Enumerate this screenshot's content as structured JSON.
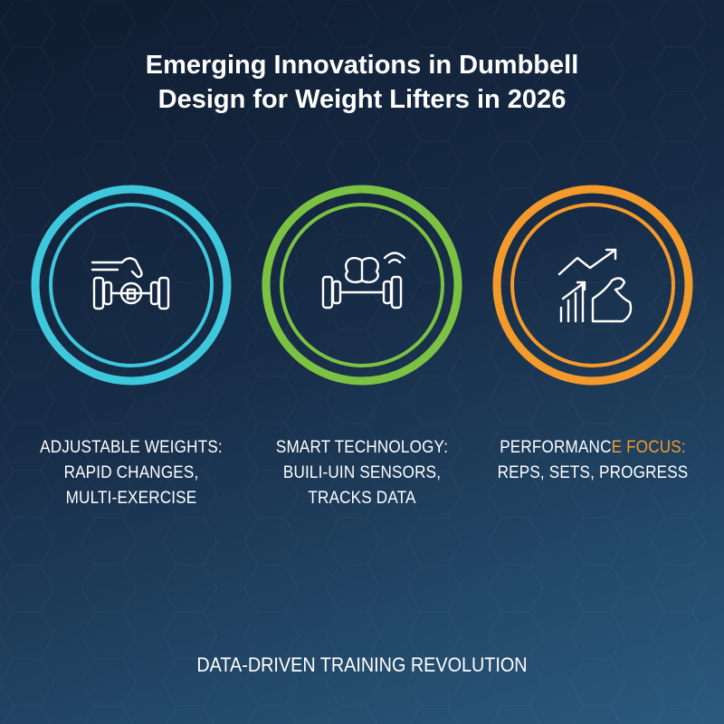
{
  "header": {
    "title_lines": [
      "Emerging Innovations in Dumbbell",
      "Design for Weight Lifters in 2026"
    ]
  },
  "features": [
    {
      "ring_color": "#3ec8de",
      "heading_parts": [
        "ADJUSTABLE WEIGHTS:"
      ],
      "lines": [
        "RAPID CHANGES,",
        "MULTI-EXERCISE"
      ]
    },
    {
      "ring_color": "#7cc242",
      "heading_parts": [
        "SMART TECHNOLOGY:"
      ],
      "lines": [
        "BUILI-UIN SENSORS,",
        "TRACKS DATA"
      ]
    },
    {
      "ring_color": "#f39a2b",
      "heading_parts": [
        "PERFORMANC",
        "E FOCUS:"
      ],
      "lines": [
        "REPS, SETS, PROGRESS"
      ]
    }
  ],
  "footer": {
    "text": "DATA-DRIVEN TRAINING REVOLUTION"
  }
}
